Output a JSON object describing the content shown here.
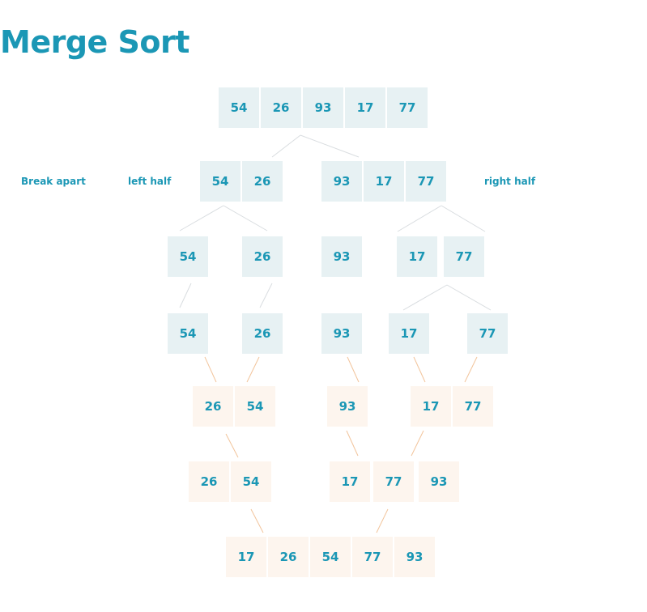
{
  "title": "Merge Sort",
  "labels": {
    "break_apart": "Break apart",
    "left_half": "left half",
    "right_half": "right half"
  },
  "colors": {
    "text": "#1b97b5",
    "split_fill": "#e7f1f3",
    "merge_fill": "#fdf5ee",
    "split_line": "#d9dde0",
    "merge_line": "#f2c49b"
  },
  "rows": [
    {
      "phase": "split",
      "groups": [
        [
          54,
          26,
          93,
          17,
          77
        ]
      ]
    },
    {
      "phase": "split",
      "groups": [
        [
          54,
          26
        ],
        [
          93,
          17,
          77
        ]
      ]
    },
    {
      "phase": "split",
      "groups": [
        [
          54
        ],
        [
          26
        ],
        [
          93
        ],
        [
          17
        ],
        [
          77
        ]
      ]
    },
    {
      "phase": "split",
      "groups": [
        [
          54
        ],
        [
          26
        ],
        [
          93
        ],
        [
          17
        ],
        [
          77
        ]
      ]
    },
    {
      "phase": "merge",
      "groups": [
        [
          26,
          54
        ],
        [
          93
        ],
        [
          17,
          77
        ]
      ]
    },
    {
      "phase": "merge",
      "groups": [
        [
          26,
          54
        ],
        [
          17,
          77,
          93
        ]
      ]
    },
    {
      "phase": "merge",
      "groups": [
        [
          17,
          26,
          54,
          77,
          93
        ]
      ]
    }
  ]
}
